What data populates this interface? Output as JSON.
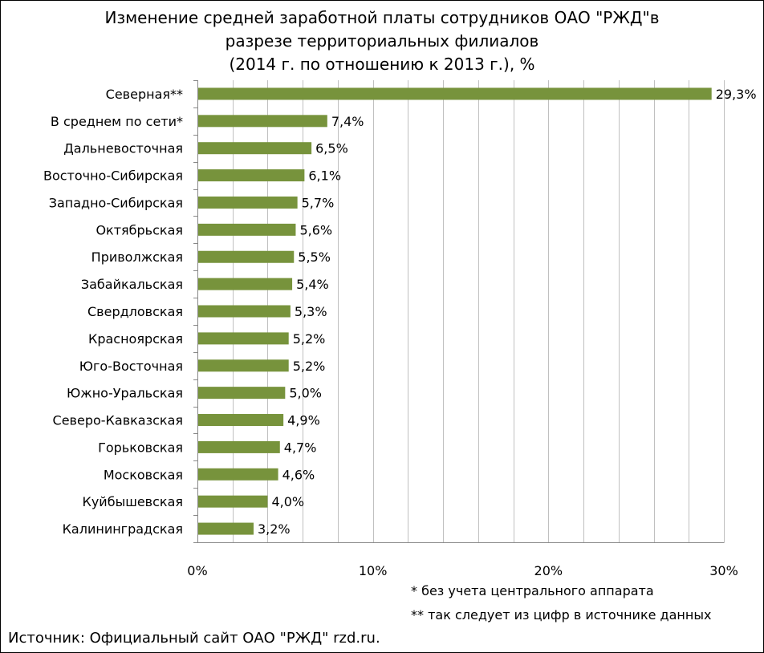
{
  "chart_data": {
    "type": "bar",
    "orientation": "horizontal",
    "title_lines": [
      "Изменение средней заработной платы сотрудников ОАО \"РЖД\"в",
      "разрезе территориальных филиалов",
      "(2014 г. по отношению к 2013 г.), %"
    ],
    "categories": [
      "Северная**",
      "В среднем по сети*",
      "Дальневосточная",
      "Восточно-Сибирская",
      "Западно-Сибирская",
      "Октябрьская",
      "Приволжская",
      "Забайкальская",
      "Свердловская",
      "Красноярская",
      "Юго-Восточная",
      "Южно-Уральская",
      "Северо-Кавказская",
      "Горьковская",
      "Московская",
      "Куйбышевская",
      "Калининградская"
    ],
    "values": [
      29.3,
      7.4,
      6.5,
      6.1,
      5.7,
      5.6,
      5.5,
      5.4,
      5.3,
      5.2,
      5.2,
      5.0,
      4.9,
      4.7,
      4.6,
      4.0,
      3.2
    ],
    "data_labels": [
      "29,3%",
      "7,4%",
      "6,5%",
      "6,1%",
      "5,7%",
      "5,6%",
      "5,5%",
      "5,4%",
      "5,3%",
      "5,2%",
      "5,2%",
      "5,0%",
      "4,9%",
      "4,7%",
      "4,6%",
      "4,0%",
      "3,2%"
    ],
    "x_ticks": [
      {
        "value": 0,
        "label": "0%"
      },
      {
        "value": 10,
        "label": "10%"
      },
      {
        "value": 20,
        "label": "20%"
      },
      {
        "value": 30,
        "label": "30%"
      }
    ],
    "xlim": [
      0,
      30
    ],
    "minor_grid_step": 2,
    "grid": true,
    "bar_color": "#77933c",
    "grid_color": "#c0c0c0"
  },
  "notes": {
    "note1": "* без учета центрального аппарата",
    "note2": "** так следует из цифр в источнике данных"
  },
  "source": "Источник: Официальный сайт ОАО \"РЖД\" rzd.ru."
}
